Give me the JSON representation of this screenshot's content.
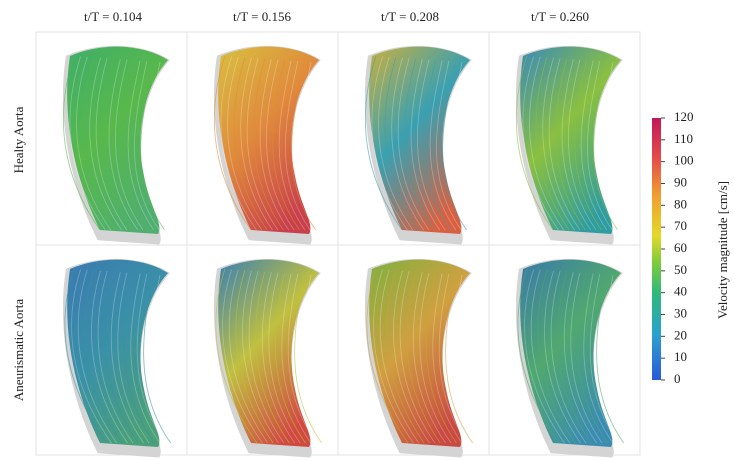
{
  "header": {
    "columns": [
      "t/T = 0.104",
      "t/T = 0.156",
      "t/T = 0.208",
      "t/T = 0.260"
    ]
  },
  "rows": [
    "Healty Aorta",
    "Aneurismatic Aorta"
  ],
  "colorbar": {
    "label": "Velocity magnitude [cm/s]",
    "lim": [
      0,
      120
    ],
    "ticks": [
      0,
      10,
      20,
      30,
      40,
      50,
      60,
      70,
      80,
      90,
      100,
      110,
      120
    ]
  }
}
